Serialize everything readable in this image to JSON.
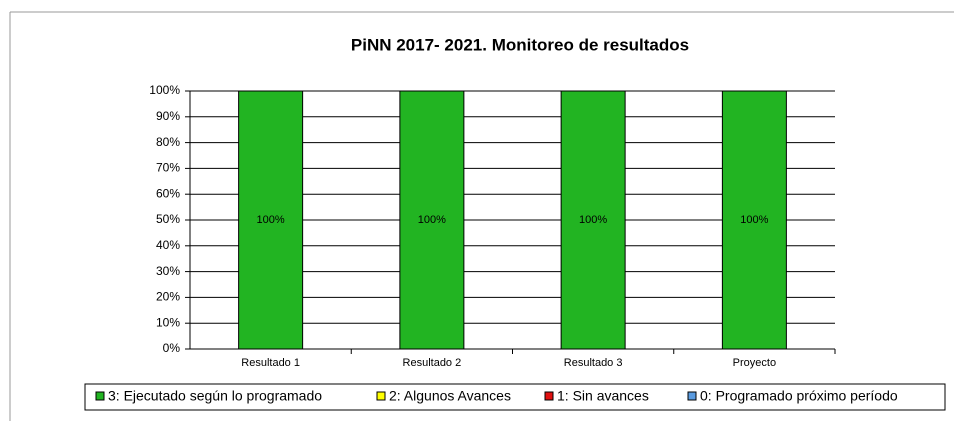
{
  "chart_data": {
    "type": "stacked-bar",
    "title": "PiNN 2017- 2021. Monitoreo de resultados",
    "categories": [
      "Resultado 1",
      "Resultado 2",
      "Resultado 3",
      "Proyecto"
    ],
    "series": [
      {
        "name": "3: Ejecutado según lo programado",
        "color": "#22b422",
        "values": [
          100,
          100,
          100,
          100
        ],
        "value_labels": [
          "100%",
          "100%",
          "100%",
          "100%"
        ]
      },
      {
        "name": "2: Algunos Avances",
        "color": "#ffff00",
        "values": [
          0,
          0,
          0,
          0
        ]
      },
      {
        "name": "1: Sin avances",
        "color": "#e01010",
        "values": [
          0,
          0,
          0,
          0
        ]
      },
      {
        "name": "0: Programado próximo período",
        "color": "#5a9be0",
        "values": [
          0,
          0,
          0,
          0
        ]
      }
    ],
    "ylim": [
      0,
      100
    ],
    "yticks": [
      {
        "value": 0,
        "label": "0%"
      },
      {
        "value": 10,
        "label": "10%"
      },
      {
        "value": 20,
        "label": "20%"
      },
      {
        "value": 30,
        "label": "30%"
      },
      {
        "value": 40,
        "label": "40%"
      },
      {
        "value": 50,
        "label": "50%"
      },
      {
        "value": 60,
        "label": "60%"
      },
      {
        "value": 70,
        "label": "70%"
      },
      {
        "value": 80,
        "label": "80%"
      },
      {
        "value": 90,
        "label": "90%"
      },
      {
        "value": 100,
        "label": "100%"
      }
    ],
    "grid": true,
    "legend": "bottom"
  }
}
